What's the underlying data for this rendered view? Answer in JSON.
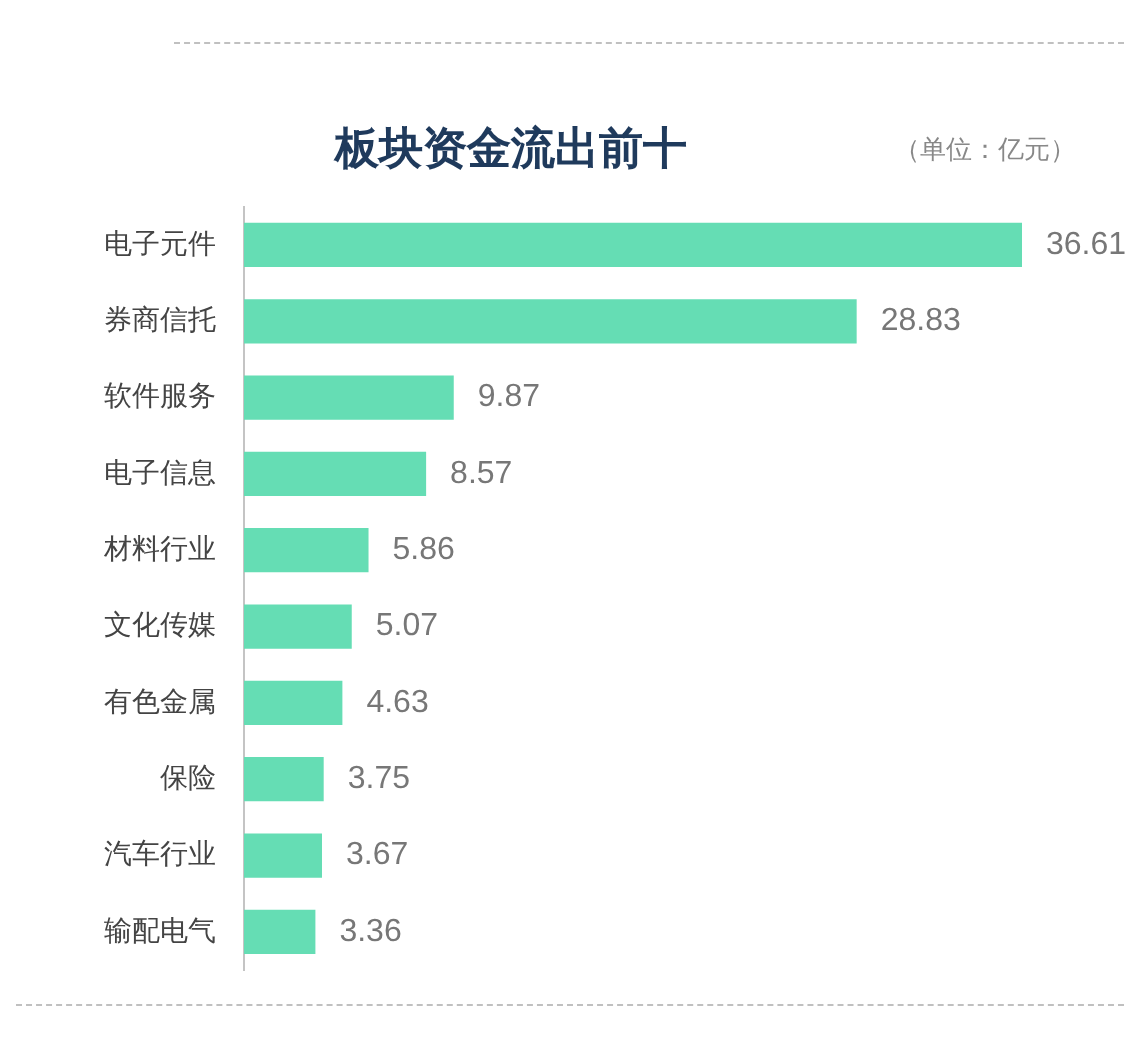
{
  "chart_data": {
    "type": "bar",
    "orientation": "horizontal",
    "title": "板块资金流出前十",
    "annotations": [
      "（单位：亿元）"
    ],
    "categories": [
      "电子元件",
      "券商信托",
      "软件服务",
      "电子信息",
      "材料行业",
      "文化传媒",
      "有色金属",
      "保险",
      "汽车行业",
      "输配电气"
    ],
    "values": [
      36.61,
      28.83,
      9.87,
      8.57,
      5.86,
      5.07,
      4.63,
      3.75,
      3.67,
      3.36
    ],
    "color": "#65ddb4",
    "data_labels": true
  }
}
